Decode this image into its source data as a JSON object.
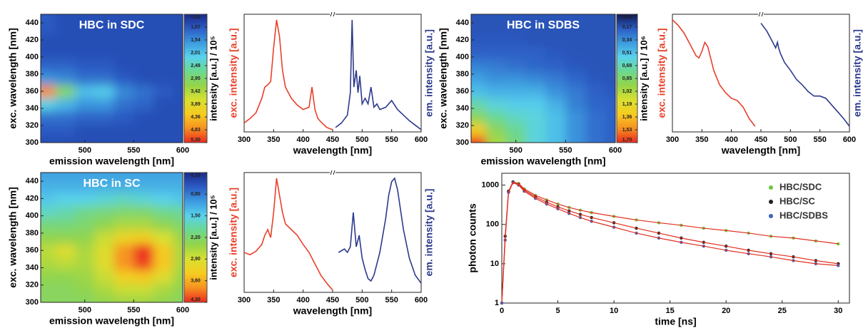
{
  "chart_data": [
    {
      "type": "heatmap",
      "title": "HBC in SDC",
      "x_label": "emission wavelength [nm]",
      "y_label": "exc. wavelength [nm]",
      "x": [
        460,
        480,
        500,
        520,
        540,
        560,
        580,
        600
      ],
      "y": [
        300,
        315,
        330,
        345,
        360,
        375,
        390,
        405,
        420,
        435,
        450
      ],
      "z": [
        [
          1.0,
          1.0,
          1.0,
          1.0,
          1.0,
          1.0,
          1.0,
          1.0
        ],
        [
          1.1,
          1.1,
          1.0,
          1.0,
          1.0,
          1.0,
          1.0,
          1.0
        ],
        [
          1.3,
          1.3,
          1.2,
          1.2,
          1.1,
          1.0,
          1.0,
          1.0
        ],
        [
          2.2,
          1.9,
          1.6,
          1.6,
          1.3,
          1.2,
          1.0,
          1.0
        ],
        [
          4.8,
          3.0,
          2.0,
          2.1,
          1.5,
          1.3,
          1.1,
          1.0
        ],
        [
          1.6,
          1.5,
          1.3,
          1.3,
          1.1,
          1.0,
          1.0,
          1.0
        ],
        [
          1.2,
          1.2,
          1.1,
          1.1,
          1.0,
          1.0,
          1.0,
          1.0
        ],
        [
          1.0,
          1.0,
          1.0,
          1.0,
          1.0,
          1.0,
          1.0,
          1.0
        ],
        [
          1.0,
          1.0,
          1.0,
          1.0,
          1.0,
          1.0,
          1.0,
          1.0
        ],
        [
          1.1,
          1.0,
          1.0,
          1.0,
          1.0,
          1.0,
          1.0,
          1.0
        ],
        [
          1.1,
          1.0,
          1.0,
          1.0,
          1.0,
          1.0,
          1.0,
          1.0
        ]
      ],
      "xlim": [
        455,
        600
      ],
      "xticks": [
        500,
        550,
        600
      ],
      "ylim": [
        300,
        450
      ],
      "yticks": [
        300,
        320,
        340,
        360,
        380,
        400,
        420,
        440
      ],
      "colormap": [
        "#1a2a8a",
        "#2c5cc4",
        "#3c9be0",
        "#58d2ec",
        "#6cd890",
        "#94d44a",
        "#d8e030",
        "#f6cc20",
        "#f69020",
        "#ec2a20"
      ],
      "colorbar": {
        "label": "intensity [a.u.] / 10⁵",
        "lim": [
          0.6,
          5.3
        ],
        "ticks": [
          {
            "value": 0.6,
            "label": "0,60"
          },
          {
            "value": 1.07,
            "label": "1,07"
          },
          {
            "value": 1.54,
            "label": "1,54"
          },
          {
            "value": 2.01,
            "label": "2,01"
          },
          {
            "value": 2.48,
            "label": "2,48"
          },
          {
            "value": 2.95,
            "label": "2,95"
          },
          {
            "value": 3.42,
            "label": "3,42"
          },
          {
            "value": 3.89,
            "label": "3,89"
          },
          {
            "value": 4.36,
            "label": "4,36"
          },
          {
            "value": 4.83,
            "label": "4,83"
          },
          {
            "value": 5.3,
            "label": "5,30"
          }
        ]
      }
    },
    {
      "type": "line",
      "x_label": "wavelength [nm]",
      "y_label": "exc. intensity [a.u.]",
      "y2_label": "em. intensity [a.u.]",
      "xlim": [
        300,
        600
      ],
      "xticks": [
        300,
        350,
        400,
        450,
        500,
        550,
        600
      ],
      "ylim": [
        0,
        1.05
      ],
      "y2lim": [
        0,
        1.05
      ],
      "series": [
        {
          "color": "#e8402a",
          "axis": "y",
          "x": [
            300,
            310,
            320,
            330,
            335,
            340,
            345,
            350,
            355,
            360,
            365,
            370,
            380,
            390,
            400,
            410,
            415,
            420,
            425,
            430,
            440,
            450
          ],
          "values": [
            0.08,
            0.12,
            0.17,
            0.3,
            0.4,
            0.42,
            0.45,
            0.75,
            1.0,
            0.85,
            0.55,
            0.4,
            0.3,
            0.24,
            0.2,
            0.22,
            0.4,
            0.2,
            0.12,
            0.09,
            0.04,
            0.02
          ]
        },
        {
          "color": "#2c3a8c",
          "axis": "y2",
          "x": [
            455,
            465,
            475,
            480,
            483,
            486,
            490,
            493,
            496,
            500,
            505,
            510,
            515,
            520,
            525,
            530,
            540,
            550,
            560,
            570,
            580,
            590,
            600
          ],
          "values": [
            0.04,
            0.08,
            0.15,
            0.35,
            1.0,
            0.4,
            0.55,
            0.35,
            0.5,
            0.25,
            0.3,
            0.25,
            0.4,
            0.22,
            0.25,
            0.2,
            0.22,
            0.28,
            0.2,
            0.15,
            0.1,
            0.06,
            0.02
          ]
        }
      ]
    },
    {
      "type": "heatmap",
      "title": "HBC in SDBS",
      "x_label": "emission wavelength [nm]",
      "y_label": "exc. wavelength [nm]",
      "x": [
        460,
        480,
        500,
        520,
        540,
        560,
        580,
        600
      ],
      "y": [
        300,
        315,
        330,
        345,
        360,
        375,
        390,
        405,
        420,
        435,
        450
      ],
      "z": [
        [
          1.7,
          1.0,
          0.8,
          0.6,
          0.5,
          0.35,
          0.25,
          0.2
        ],
        [
          1.3,
          0.9,
          0.75,
          0.6,
          0.5,
          0.35,
          0.25,
          0.2
        ],
        [
          0.9,
          0.75,
          0.65,
          0.6,
          0.5,
          0.35,
          0.25,
          0.2
        ],
        [
          0.7,
          0.6,
          0.55,
          0.55,
          0.45,
          0.3,
          0.22,
          0.2
        ],
        [
          0.5,
          0.45,
          0.45,
          0.45,
          0.35,
          0.28,
          0.2,
          0.18
        ],
        [
          0.4,
          0.35,
          0.35,
          0.32,
          0.28,
          0.22,
          0.18,
          0.17
        ],
        [
          0.3,
          0.28,
          0.25,
          0.22,
          0.2,
          0.18,
          0.17,
          0.17
        ],
        [
          0.2,
          0.2,
          0.2,
          0.2,
          0.18,
          0.17,
          0.17,
          0.17
        ],
        [
          0.18,
          0.18,
          0.18,
          0.17,
          0.17,
          0.17,
          0.17,
          0.17
        ],
        [
          0.17,
          0.17,
          0.17,
          0.17,
          0.17,
          0.17,
          0.17,
          0.17
        ],
        [
          0.17,
          0.17,
          0.17,
          0.17,
          0.17,
          0.17,
          0.17,
          0.17
        ]
      ],
      "xlim": [
        455,
        600
      ],
      "xticks": [
        500,
        550,
        600
      ],
      "ylim": [
        300,
        450
      ],
      "yticks": [
        300,
        320,
        340,
        360,
        380,
        400,
        420,
        440
      ],
      "colormap": [
        "#101850",
        "#2c5cc4",
        "#3c9be0",
        "#58d2ec",
        "#6cd890",
        "#94d44a",
        "#d8e030",
        "#f6cc20",
        "#f69020",
        "#ec2a20"
      ],
      "colorbar": {
        "label": "intensity [a.u.] / 10⁶",
        "lim": [
          0,
          1.7
        ],
        "ticks": [
          {
            "value": 0,
            "label": "0,00"
          },
          {
            "value": 0.17,
            "label": "0,17"
          },
          {
            "value": 0.34,
            "label": "0,34"
          },
          {
            "value": 0.51,
            "label": "0,51"
          },
          {
            "value": 0.68,
            "label": "0,68"
          },
          {
            "value": 0.85,
            "label": "0,85"
          },
          {
            "value": 1.02,
            "label": "1,02"
          },
          {
            "value": 1.19,
            "label": "1,19"
          },
          {
            "value": 1.36,
            "label": "1,36"
          },
          {
            "value": 1.53,
            "label": "1,53"
          },
          {
            "value": 1.7,
            "label": "1,70"
          }
        ]
      }
    },
    {
      "type": "line",
      "x_label": "wavelength [nm]",
      "y_label": "exc. intensity [a.u.]",
      "y2_label": "em. intensity [a.u.]",
      "xlim": [
        300,
        600
      ],
      "xticks": [
        300,
        350,
        400,
        450,
        500,
        550,
        600
      ],
      "ylim": [
        0,
        1.05
      ],
      "y2lim": [
        0,
        1.05
      ],
      "series": [
        {
          "color": "#e8402a",
          "axis": "y",
          "x": [
            300,
            310,
            320,
            330,
            340,
            345,
            350,
            355,
            360,
            370,
            380,
            390,
            400,
            410,
            420,
            430,
            440
          ],
          "values": [
            1.0,
            0.95,
            0.88,
            0.78,
            0.68,
            0.66,
            0.72,
            0.8,
            0.76,
            0.55,
            0.42,
            0.35,
            0.3,
            0.28,
            0.22,
            0.12,
            0.05
          ]
        },
        {
          "color": "#2c3a8c",
          "axis": "y2",
          "x": [
            450,
            460,
            470,
            475,
            478,
            480,
            483,
            490,
            500,
            510,
            520,
            530,
            540,
            550,
            560,
            570,
            580,
            590,
            600
          ],
          "values": [
            0.97,
            0.9,
            0.8,
            0.75,
            0.8,
            0.75,
            0.7,
            0.62,
            0.55,
            0.47,
            0.42,
            0.36,
            0.32,
            0.32,
            0.3,
            0.24,
            0.18,
            0.12,
            0.05
          ]
        }
      ]
    },
    {
      "type": "heatmap",
      "title": "HBC in SC",
      "x_label": "emission wavelength [nm]",
      "y_label": "exc. wavelength [nm]",
      "x": [
        460,
        480,
        500,
        520,
        540,
        560,
        580,
        600
      ],
      "y": [
        300,
        315,
        330,
        345,
        360,
        375,
        390,
        405,
        420,
        435,
        450
      ],
      "z": [
        [
          2.3,
          2.3,
          2.3,
          2.4,
          2.5,
          2.5,
          2.4,
          2.3
        ],
        [
          2.3,
          2.3,
          2.4,
          2.6,
          2.8,
          2.8,
          2.6,
          2.4
        ],
        [
          2.4,
          2.4,
          2.5,
          2.8,
          3.3,
          3.4,
          3.0,
          2.5
        ],
        [
          2.6,
          2.7,
          2.6,
          3.0,
          3.8,
          4.2,
          3.4,
          2.6
        ],
        [
          2.7,
          3.0,
          2.6,
          3.0,
          3.8,
          4.3,
          3.4,
          2.6
        ],
        [
          2.4,
          2.4,
          2.4,
          2.8,
          3.2,
          3.3,
          2.9,
          2.5
        ],
        [
          2.1,
          2.1,
          2.2,
          2.4,
          2.6,
          2.6,
          2.4,
          2.2
        ],
        [
          1.7,
          1.8,
          2.0,
          2.1,
          2.2,
          2.2,
          2.0,
          1.9
        ],
        [
          1.4,
          1.5,
          1.5,
          1.6,
          1.7,
          1.6,
          1.5,
          1.4
        ],
        [
          1.2,
          1.2,
          1.2,
          1.2,
          1.2,
          1.2,
          1.2,
          1.2
        ],
        [
          1.1,
          1.1,
          1.1,
          1.1,
          1.1,
          1.1,
          1.1,
          1.1
        ]
      ],
      "xlim": [
        455,
        600
      ],
      "xticks": [
        500,
        550,
        600
      ],
      "ylim": [
        300,
        450
      ],
      "yticks": [
        300,
        320,
        340,
        360,
        380,
        400,
        420,
        440
      ],
      "colormap": [
        "#1a2a8a",
        "#2c5cc4",
        "#3c9be0",
        "#58d2ec",
        "#6cd890",
        "#94d44a",
        "#d8e030",
        "#f6cc20",
        "#f69020",
        "#ec2a20"
      ],
      "colorbar": {
        "label": "intensity [a.u.] / 10⁵",
        "lim": [
          0.1,
          4.3
        ],
        "ticks": [
          {
            "value": 0.1,
            "label": "0,10"
          },
          {
            "value": 0.8,
            "label": "0,80"
          },
          {
            "value": 1.5,
            "label": "1,50"
          },
          {
            "value": 2.2,
            "label": "2,20"
          },
          {
            "value": 2.9,
            "label": "2,90"
          },
          {
            "value": 3.6,
            "label": "3,60"
          },
          {
            "value": 4.3,
            "label": "4,30"
          }
        ]
      }
    },
    {
      "type": "line",
      "x_label": "wavelength [nm]",
      "y_label": "exc. intensity [a.u.]",
      "y2_label": "em. intensity [a.u.]",
      "xlim": [
        300,
        600
      ],
      "xticks": [
        300,
        350,
        400,
        450,
        500,
        550,
        600
      ],
      "ylim": [
        0,
        1.05
      ],
      "y2lim": [
        0,
        1.05
      ],
      "series": [
        {
          "color": "#e8402a",
          "axis": "y",
          "x": [
            300,
            310,
            320,
            330,
            335,
            340,
            345,
            350,
            355,
            360,
            365,
            370,
            380,
            390,
            400,
            410,
            420,
            430,
            440,
            450
          ],
          "values": [
            0.35,
            0.33,
            0.36,
            0.42,
            0.5,
            0.55,
            0.48,
            0.7,
            1.0,
            0.85,
            0.7,
            0.6,
            0.55,
            0.5,
            0.42,
            0.35,
            0.25,
            0.15,
            0.08,
            0.02
          ]
        },
        {
          "color": "#2c3a8c",
          "axis": "y2",
          "x": [
            460,
            470,
            475,
            480,
            485,
            490,
            495,
            500,
            505,
            510,
            515,
            520,
            530,
            540,
            545,
            550,
            555,
            560,
            570,
            580,
            590,
            600
          ],
          "values": [
            0.35,
            0.38,
            0.35,
            0.4,
            0.7,
            0.4,
            0.5,
            0.3,
            0.2,
            0.12,
            0.1,
            0.15,
            0.35,
            0.65,
            0.85,
            0.97,
            1.0,
            0.9,
            0.55,
            0.3,
            0.15,
            0.08
          ]
        }
      ]
    },
    {
      "type": "scatter",
      "x_label": "time [ns]",
      "y_label": "photon counts",
      "log_y": true,
      "legend": "upper right",
      "fit_color": "#e03020",
      "xlim": [
        0,
        31
      ],
      "xticks": [
        0,
        5,
        10,
        15,
        20,
        25,
        30
      ],
      "ylim": [
        1,
        2000
      ],
      "yticks": [
        1,
        10,
        100,
        1000
      ],
      "x": [
        0,
        0.3,
        0.6,
        1,
        1.5,
        2,
        3,
        4,
        5,
        6,
        7,
        8,
        10,
        12,
        14,
        16,
        18,
        20,
        22,
        24,
        26,
        28,
        30
      ],
      "series": [
        {
          "name": "HBC/SDC",
          "color": "#6cc83c",
          "values": [
            1,
            50,
            700,
            1200,
            1100,
            800,
            550,
            420,
            330,
            270,
            230,
            200,
            160,
            130,
            110,
            95,
            80,
            70,
            60,
            50,
            45,
            38,
            32
          ]
        },
        {
          "name": "HBC/SC",
          "color": "#202020",
          "values": [
            1,
            50,
            700,
            1200,
            1050,
            750,
            500,
            370,
            280,
            220,
            180,
            150,
            110,
            80,
            60,
            45,
            35,
            28,
            22,
            18,
            15,
            12,
            10
          ]
        },
        {
          "name": "HBC/SDBS",
          "color": "#4060c0",
          "values": [
            1,
            40,
            650,
            1150,
            1000,
            700,
            460,
            330,
            250,
            190,
            150,
            120,
            85,
            60,
            45,
            35,
            28,
            22,
            18,
            15,
            12,
            10,
            9
          ]
        }
      ]
    }
  ]
}
